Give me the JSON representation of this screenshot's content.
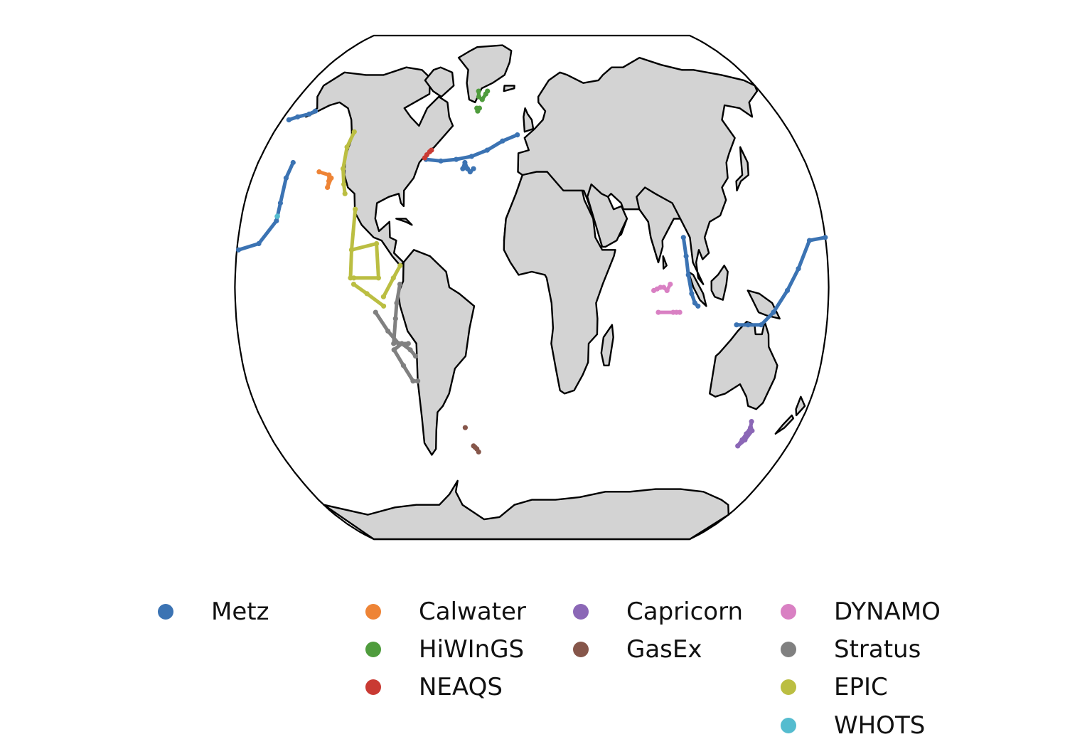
{
  "colors": {
    "land": "#d3d3d3",
    "coastline": "#000000",
    "ocean": "#ffffff"
  },
  "legend": [
    {
      "name": "Metz",
      "color": "#3b73b3"
    },
    {
      "name": "Calwater",
      "color": "#ee8436"
    },
    {
      "name": "HiWInGS",
      "color": "#4f9c3d"
    },
    {
      "name": "NEAQS",
      "color": "#c93a33"
    },
    {
      "name": "Capricorn",
      "color": "#8b67b6"
    },
    {
      "name": "GasEx",
      "color": "#86564a"
    },
    {
      "name": "DYNAMO",
      "color": "#d980c3"
    },
    {
      "name": "Stratus",
      "color": "#808080"
    },
    {
      "name": "EPIC",
      "color": "#bbbe42"
    },
    {
      "name": "WHOTS",
      "color": "#55bccf"
    }
  ],
  "projection": "robinson",
  "basemap": "world-coastlines",
  "tracks": {
    "Metz": [
      {
        "lon_lat": [
          [
            -179,
            12
          ],
          [
            -167,
            14
          ],
          [
            -158,
            21.3
          ],
          [
            -157.5,
            27
          ],
          [
            -158,
            35
          ],
          [
            -157,
            40
          ]
        ]
      },
      {
        "lon_lat": [
          [
            -175,
            54
          ],
          [
            -170,
            55
          ],
          [
            -163,
            56
          ],
          [
            -160,
            57
          ]
        ]
      },
      {
        "lon_lat": [
          [
            -70,
            41
          ],
          [
            -60,
            40.5
          ],
          [
            -50,
            41
          ],
          [
            -40,
            42
          ],
          [
            -30,
            44
          ],
          [
            -20,
            47
          ],
          [
            -10,
            49
          ]
        ]
      },
      {
        "lon_lat": [
          [
            -45,
            38
          ],
          [
            -44,
            40
          ],
          [
            -42,
            38
          ],
          [
            -40,
            37
          ],
          [
            -38,
            38
          ]
        ]
      },
      {
        "lon_lat": [
          [
            93,
            16
          ],
          [
            94,
            10
          ],
          [
            95,
            4
          ],
          [
            97,
            -2
          ],
          [
            99,
            -5
          ],
          [
            101,
            -6
          ]
        ]
      },
      {
        "lon_lat": [
          [
            125,
            -12
          ],
          [
            132,
            -12
          ],
          [
            140,
            -12
          ],
          [
            147,
            -8
          ],
          [
            155,
            -1
          ],
          [
            162,
            6
          ],
          [
            170,
            15
          ],
          [
            180,
            16
          ]
        ]
      }
    ],
    "Calwater": [
      {
        "lon_lat": [
          [
            -138,
            37
          ],
          [
            -131,
            36
          ],
          [
            -130,
            34
          ],
          [
            -130,
            32
          ],
          [
            -129,
            35
          ]
        ]
      }
    ],
    "HiWInGS": [
      {
        "lon_lat": [
          [
            -42,
            64
          ],
          [
            -41,
            62
          ],
          [
            -38,
            61
          ],
          [
            -36,
            63
          ],
          [
            -35,
            64
          ]
        ]
      },
      {
        "lon_lat": [
          [
            -41,
            58
          ],
          [
            -40,
            57
          ],
          [
            -39,
            58
          ]
        ]
      }
    ],
    "NEAQS": [
      {
        "lon_lat": [
          [
            -71,
            41.5
          ],
          [
            -70,
            42.5
          ],
          [
            -68.5,
            43.5
          ],
          [
            -67.5,
            44
          ]
        ]
      }
    ],
    "Capricorn": [
      {
        "lon_lat": [
          [
            147,
            -43
          ],
          [
            148,
            -45
          ],
          [
            147,
            -47
          ],
          [
            146,
            -49
          ],
          [
            145,
            -51
          ],
          [
            148,
            -49
          ],
          [
            150,
            -46
          ]
        ]
      }
    ],
    "GasEx": [
      {
        "lon_lat": [
          [
            -41,
            -51
          ],
          [
            -40,
            -51.5
          ],
          [
            -39,
            -52
          ],
          [
            -38,
            -53
          ]
        ]
      },
      {
        "lon_lat": [
          [
            -45,
            -45
          ]
        ]
      }
    ],
    "DYNAMO": [
      {
        "lon_lat": [
          [
            74,
            -1
          ],
          [
            76,
            -0.5
          ],
          [
            78,
            0
          ],
          [
            80,
            0
          ],
          [
            82,
            -1
          ],
          [
            84,
            1
          ]
        ]
      },
      {
        "lon_lat": [
          [
            77,
            -8
          ],
          [
            86,
            -8
          ],
          [
            88,
            -8
          ],
          [
            90,
            -8
          ]
        ]
      }
    ],
    "Stratus": [
      {
        "lon_lat": [
          [
            -85,
            -20
          ],
          [
            -80,
            -18
          ],
          [
            -75,
            -20
          ],
          [
            -72,
            -22
          ]
        ]
      },
      {
        "lon_lat": [
          [
            -85,
            -20
          ],
          [
            -80,
            -25
          ],
          [
            -75,
            -30
          ],
          [
            -72,
            -30
          ]
        ]
      },
      {
        "lon_lat": [
          [
            -95,
            -8
          ],
          [
            -88,
            -14
          ],
          [
            -82,
            -18
          ],
          [
            -76,
            -18
          ]
        ]
      },
      {
        "lon_lat": [
          [
            -80,
            1
          ],
          [
            -82,
            -5
          ],
          [
            -83,
            -10
          ],
          [
            -85,
            -18
          ]
        ]
      }
    ],
    "EPIC": [
      {
        "lon_lat": [
          [
            -124,
            50
          ],
          [
            -125,
            45
          ],
          [
            -123,
            38
          ],
          [
            -120,
            33
          ],
          [
            -118,
            30
          ]
        ]
      },
      {
        "lon_lat": [
          [
            -110,
            25
          ],
          [
            -110,
            12
          ],
          [
            -110,
            3
          ]
        ]
      },
      {
        "lon_lat": [
          [
            -110,
            12
          ],
          [
            -95,
            14
          ],
          [
            -93,
            3
          ],
          [
            -108,
            3
          ]
        ]
      },
      {
        "lon_lat": [
          [
            -108,
            1
          ],
          [
            -100,
            -2
          ],
          [
            -90,
            -6
          ]
        ]
      },
      {
        "lon_lat": [
          [
            -90,
            -3
          ],
          [
            -84,
            3
          ],
          [
            -80,
            7
          ]
        ]
      }
    ],
    "WHOTS": [
      {
        "lon_lat": [
          [
            -158,
            22.7
          ],
          [
            -157.8,
            22.8
          ]
        ]
      }
    ]
  }
}
